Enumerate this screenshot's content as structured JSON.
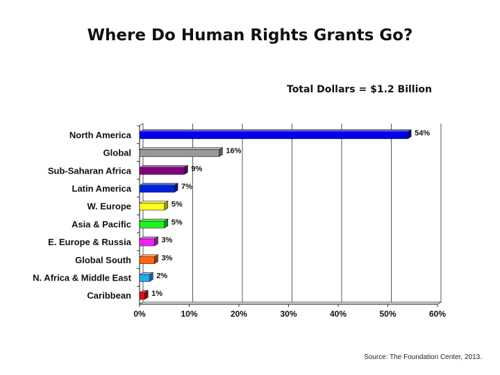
{
  "title": "Where Do Human Rights Grants Go?",
  "subtitle": "Total Dollars = $1.2 Billion",
  "source": "Source: The Foundation Center, 2013.",
  "chart_data": {
    "type": "bar",
    "orientation": "horizontal",
    "categories": [
      "North America",
      "Global",
      "Sub-Saharan Africa",
      "Latin America",
      "W. Europe",
      "Asia & Pacific",
      "E. Europe & Russia",
      "Global South",
      "N. Africa & Middle East",
      "Caribbean"
    ],
    "values": [
      54,
      16,
      9,
      7,
      5,
      5,
      3,
      3,
      2,
      1
    ],
    "data_labels": [
      "54%",
      "16%",
      "9%",
      "7%",
      "5%",
      "5%",
      "3%",
      "3%",
      "2%",
      "1%"
    ],
    "colors": [
      "#0000ee",
      "#999999",
      "#800080",
      "#0022dd",
      "#ffff22",
      "#22ee22",
      "#ee22ee",
      "#ff6611",
      "#22aaee",
      "#dd1111"
    ],
    "xlim": [
      0,
      60
    ],
    "xticks": [
      0,
      10,
      20,
      30,
      40,
      50,
      60
    ],
    "xtick_labels": [
      "0%",
      "10%",
      "20%",
      "30%",
      "40%",
      "50%",
      "60%"
    ],
    "grid": true
  }
}
